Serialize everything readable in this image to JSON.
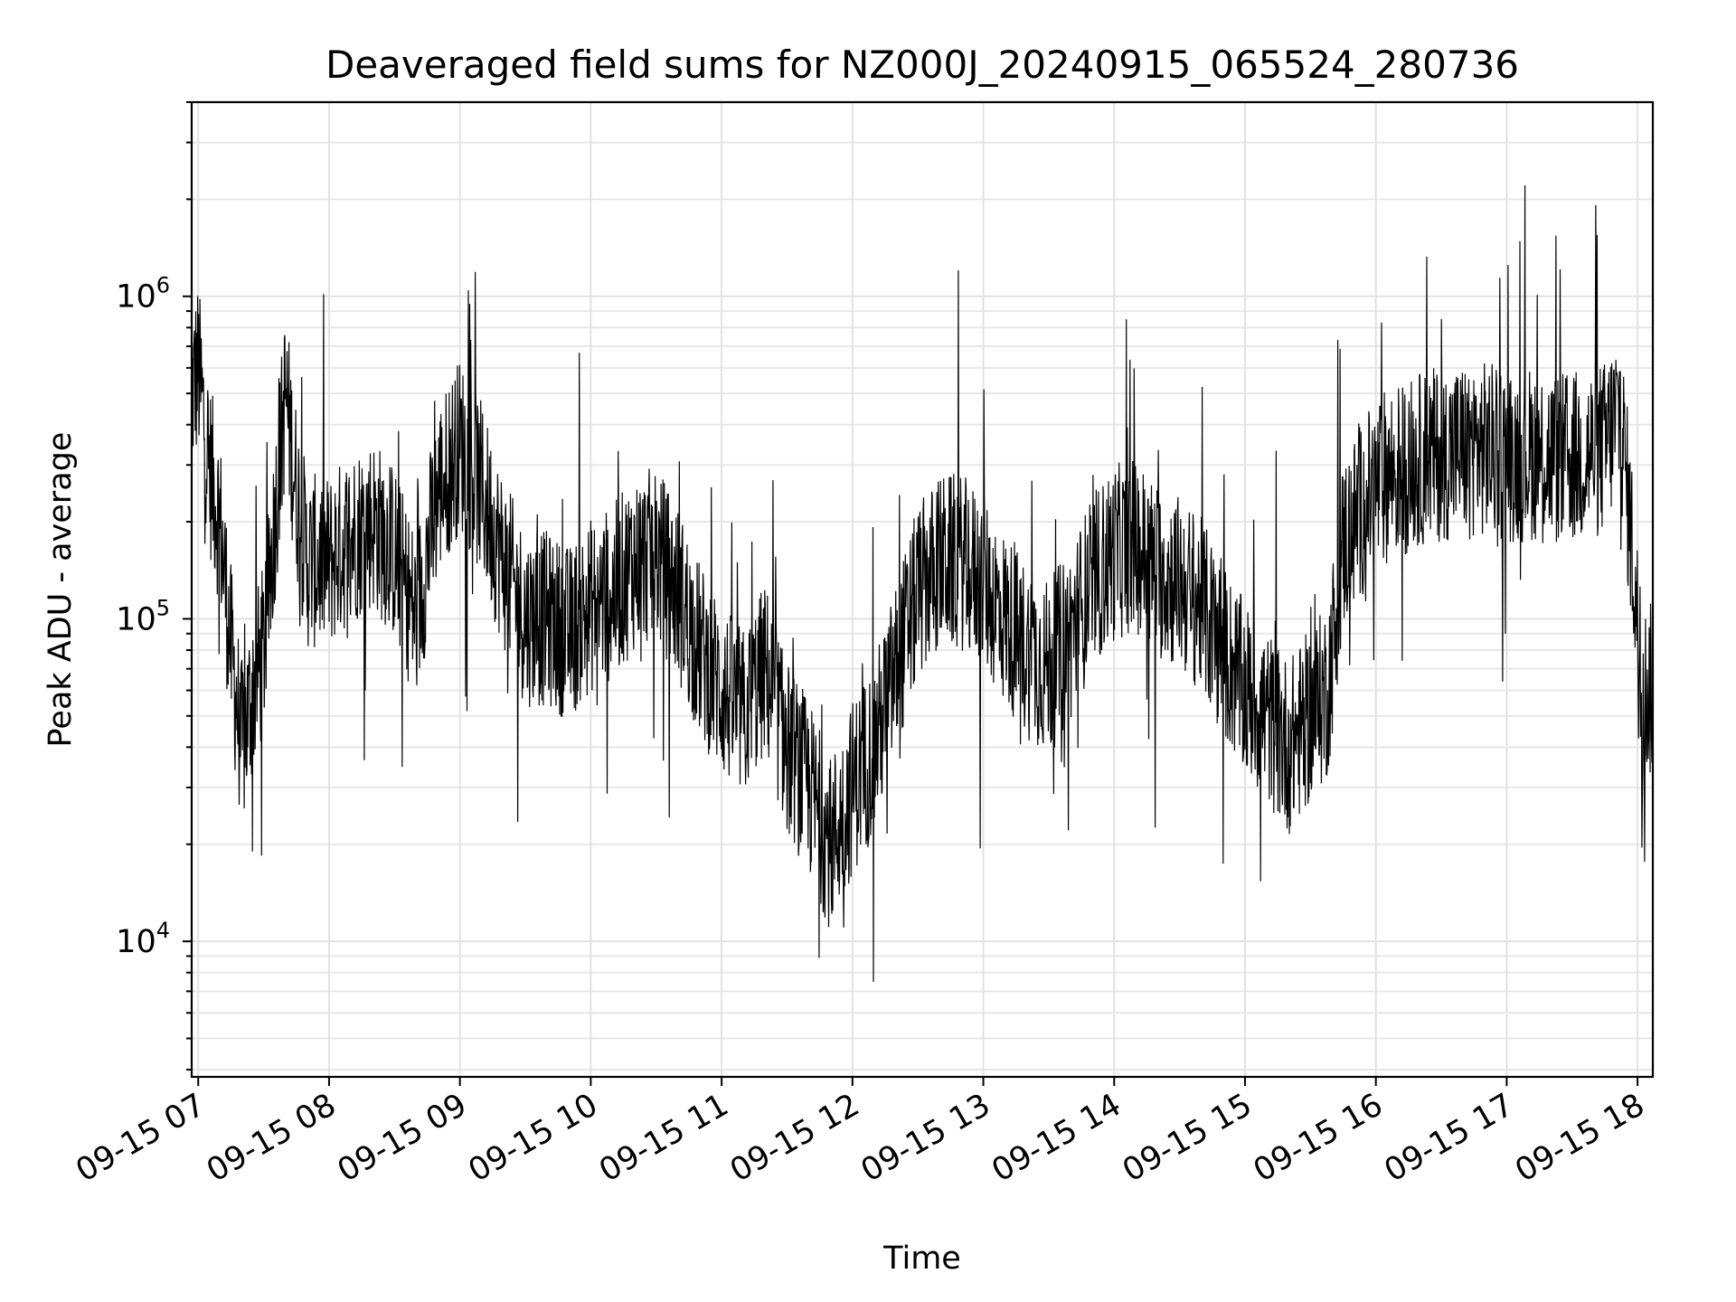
{
  "chart_data": {
    "type": "line",
    "title": "Deaveraged field sums for NZ000J_20240915_065524_280736",
    "xlabel": "Time",
    "ylabel": "Peak ADU - average",
    "yscale": "log",
    "ylim": [
      3800,
      4000000
    ],
    "yticks": [
      {
        "value": 10000,
        "base": "10",
        "exp": "4"
      },
      {
        "value": 100000,
        "base": "10",
        "exp": "5"
      },
      {
        "value": 1000000,
        "base": "10",
        "exp": "6"
      }
    ],
    "xlim": [
      "2024-09-15 06:57",
      "2024-09-15 18:07"
    ],
    "xticks": [
      {
        "value": "2024-09-15 07:00",
        "label": "09-15 07"
      },
      {
        "value": "2024-09-15 08:00",
        "label": "09-15 08"
      },
      {
        "value": "2024-09-15 09:00",
        "label": "09-15 09"
      },
      {
        "value": "2024-09-15 10:00",
        "label": "09-15 10"
      },
      {
        "value": "2024-09-15 11:00",
        "label": "09-15 11"
      },
      {
        "value": "2024-09-15 12:00",
        "label": "09-15 12"
      },
      {
        "value": "2024-09-15 13:00",
        "label": "09-15 13"
      },
      {
        "value": "2024-09-15 14:00",
        "label": "09-15 14"
      },
      {
        "value": "2024-09-15 15:00",
        "label": "09-15 15"
      },
      {
        "value": "2024-09-15 16:00",
        "label": "09-15 16"
      },
      {
        "value": "2024-09-15 17:00",
        "label": "09-15 17"
      },
      {
        "value": "2024-09-15 18:00",
        "label": "09-15 18"
      }
    ],
    "grid": true,
    "line_color": "#000000",
    "series": [
      {
        "x": [
          "2024-09-15 06:57",
          "2024-09-15 07:00",
          "2024-09-15 07:05",
          "2024-09-15 07:10",
          "2024-09-15 07:15",
          "2024-09-15 07:20",
          "2024-09-15 07:25",
          "2024-09-15 07:30",
          "2024-09-15 07:35",
          "2024-09-15 07:40",
          "2024-09-15 07:45",
          "2024-09-15 07:50",
          "2024-09-15 08:00",
          "2024-09-15 08:10",
          "2024-09-15 08:20",
          "2024-09-15 08:30",
          "2024-09-15 08:40",
          "2024-09-15 08:50",
          "2024-09-15 09:00",
          "2024-09-15 09:10",
          "2024-09-15 09:20",
          "2024-09-15 09:30",
          "2024-09-15 09:40",
          "2024-09-15 09:50",
          "2024-09-15 10:00",
          "2024-09-15 10:10",
          "2024-09-15 10:20",
          "2024-09-15 10:30",
          "2024-09-15 10:40",
          "2024-09-15 10:50",
          "2024-09-15 11:00",
          "2024-09-15 11:10",
          "2024-09-15 11:20",
          "2024-09-15 11:30",
          "2024-09-15 11:40",
          "2024-09-15 11:50",
          "2024-09-15 12:00",
          "2024-09-15 12:10",
          "2024-09-15 12:20",
          "2024-09-15 12:30",
          "2024-09-15 12:40",
          "2024-09-15 12:50",
          "2024-09-15 13:00",
          "2024-09-15 13:10",
          "2024-09-15 13:20",
          "2024-09-15 13:30",
          "2024-09-15 13:40",
          "2024-09-15 13:50",
          "2024-09-15 14:00",
          "2024-09-15 14:10",
          "2024-09-15 14:20",
          "2024-09-15 14:30",
          "2024-09-15 14:40",
          "2024-09-15 14:50",
          "2024-09-15 15:00",
          "2024-09-15 15:10",
          "2024-09-15 15:20",
          "2024-09-15 15:30",
          "2024-09-15 15:38",
          "2024-09-15 15:45",
          "2024-09-15 15:55",
          "2024-09-15 16:05",
          "2024-09-15 16:15",
          "2024-09-15 16:25",
          "2024-09-15 16:35",
          "2024-09-15 16:45",
          "2024-09-15 16:55",
          "2024-09-15 17:05",
          "2024-09-15 17:15",
          "2024-09-15 17:25",
          "2024-09-15 17:35",
          "2024-09-15 17:45",
          "2024-09-15 17:52",
          "2024-09-15 17:58",
          "2024-09-15 18:02",
          "2024-09-15 18:07"
        ],
        "y": [
          500000,
          600000,
          300000,
          200000,
          80000,
          40000,
          60000,
          80000,
          200000,
          500000,
          250000,
          150000,
          150000,
          180000,
          200000,
          160000,
          100000,
          250000,
          350000,
          250000,
          150000,
          100000,
          100000,
          90000,
          110000,
          120000,
          150000,
          160000,
          120000,
          80000,
          60000,
          50000,
          70000,
          40000,
          30000,
          20000,
          30000,
          40000,
          70000,
          120000,
          150000,
          150000,
          130000,
          100000,
          80000,
          70000,
          90000,
          130000,
          160000,
          170000,
          140000,
          130000,
          110000,
          80000,
          60000,
          50000,
          40000,
          50000,
          60000,
          170000,
          230000,
          280000,
          300000,
          320000,
          330000,
          340000,
          330000,
          320000,
          330000,
          310000,
          320000,
          340000,
          450000,
          150000,
          60000,
          60000
        ]
      }
    ]
  }
}
